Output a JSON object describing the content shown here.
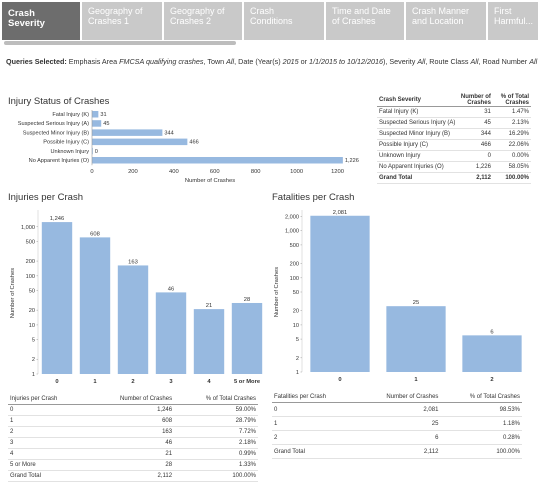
{
  "tabs": [
    {
      "label": "Crash Severity",
      "active": true
    },
    {
      "label": "Geography of Crashes 1",
      "active": false
    },
    {
      "label": "Geography of Crashes 2",
      "active": false
    },
    {
      "label": "Crash Conditions",
      "active": false
    },
    {
      "label": "Time and Date of Crashes",
      "active": false
    },
    {
      "label": "Crash Manner and Location",
      "active": false
    },
    {
      "label": "First Harmful...",
      "active": false
    }
  ],
  "query": {
    "label": "Queries Selected:",
    "p1": " Emphasis Area ",
    "p1i": "FMCSA qualifying crashes",
    "p2": ", Town ",
    "p2i": "All",
    "p3": ", Date (Year(s) ",
    "p3i": "2015",
    "p4": " or ",
    "p4i": "1/1/2015 to 10/12/2016",
    "p5": "), Severity ",
    "p5i": "All",
    "p6": ", Route Class ",
    "p6i": "All",
    "p7": ", Road Number ",
    "p7i": "All"
  },
  "injury_status": {
    "title": "Injury Status of Crashes",
    "table": {
      "headers": [
        "Crash Severity",
        "Number of Crashes",
        "% of Total Crashes"
      ],
      "rows": [
        [
          "Fatal Injury (K)",
          "31",
          "1.47%"
        ],
        [
          "Suspected Serious Injury (A)",
          "45",
          "2.13%"
        ],
        [
          "Suspected Minor Injury (B)",
          "344",
          "16.29%"
        ],
        [
          "Possible Injury (C)",
          "466",
          "22.06%"
        ],
        [
          "Unknown Injury",
          "0",
          "0.00%"
        ],
        [
          "No Apparent Injuries (O)",
          "1,226",
          "58.05%"
        ],
        [
          "Grand Total",
          "2,112",
          "100.00%"
        ]
      ]
    }
  },
  "injuries_per_crash": {
    "title": "Injuries per Crash",
    "table": {
      "headers": [
        "Injuries per Crash",
        "Number of Crashes",
        "% of Total Crashes"
      ],
      "rows": [
        [
          "0",
          "1,246",
          "59.00%"
        ],
        [
          "1",
          "608",
          "28.79%"
        ],
        [
          "2",
          "163",
          "7.72%"
        ],
        [
          "3",
          "46",
          "2.18%"
        ],
        [
          "4",
          "21",
          "0.99%"
        ],
        [
          "5 or More",
          "28",
          "1.33%"
        ],
        [
          "Grand Total",
          "2,112",
          "100.00%"
        ]
      ]
    }
  },
  "fatalities_per_crash": {
    "title": "Fatalities per Crash",
    "table": {
      "headers": [
        "Fatalities per Crash",
        "Number of Crashes",
        "% of Total Crashes"
      ],
      "rows": [
        [
          "0",
          "2,081",
          "98.53%"
        ],
        [
          "1",
          "25",
          "1.18%"
        ],
        [
          "2",
          "6",
          "0.28%"
        ],
        [
          "Grand Total",
          "2,112",
          "100.00%"
        ]
      ]
    }
  },
  "colors": {
    "bar": "#97b9e0",
    "tab_active": "#6d6d6d",
    "tab_inactive": "#c9c9c9"
  },
  "chart_data": [
    {
      "type": "bar",
      "orientation": "horizontal",
      "categories": [
        "Fatal Injury (K)",
        "Suspected Serious Injury (A)",
        "Suspected Minor Injury (B)",
        "Possible Injury (C)",
        "Unknown Injury",
        "No Apparent Injuries (O)"
      ],
      "values": [
        31,
        45,
        344,
        466,
        0,
        1226
      ],
      "data_labels": [
        "31",
        "45",
        "344",
        "466",
        "0",
        "1,226"
      ],
      "xlabel": "Number of Crashes",
      "xlim": [
        0,
        1300
      ],
      "xticks": [
        "0",
        "200",
        "400",
        "600",
        "800",
        "1000",
        "1200"
      ]
    },
    {
      "type": "bar",
      "scale": "log",
      "categories": [
        "0",
        "1",
        "2",
        "3",
        "4",
        "5 or More"
      ],
      "values": [
        1246,
        608,
        163,
        46,
        21,
        28
      ],
      "data_labels": [
        "1,246",
        "608",
        "163",
        "46",
        "21",
        "28"
      ],
      "ylabel": "Number of Crashes",
      "ylim": [
        1,
        2000
      ],
      "yticks": [
        {
          "v": 1,
          "l": "1"
        },
        {
          "v": 2,
          "l": "2"
        },
        {
          "v": 5,
          "l": "5"
        },
        {
          "v": 10,
          "l": "10"
        },
        {
          "v": 20,
          "l": "20"
        },
        {
          "v": 50,
          "l": "50"
        },
        {
          "v": 100,
          "l": "100"
        },
        {
          "v": 200,
          "l": "200"
        },
        {
          "v": 500,
          "l": "500"
        },
        {
          "v": 1000,
          "l": "1,000"
        }
      ]
    },
    {
      "type": "bar",
      "scale": "log",
      "categories": [
        "0",
        "1",
        "2"
      ],
      "values": [
        2081,
        25,
        6
      ],
      "data_labels": [
        "2,081",
        "25",
        "6"
      ],
      "ylabel": "Number of Crashes",
      "ylim": [
        1,
        2500
      ],
      "yticks": [
        {
          "v": 1,
          "l": "1"
        },
        {
          "v": 2,
          "l": "2"
        },
        {
          "v": 5,
          "l": "5"
        },
        {
          "v": 10,
          "l": "10"
        },
        {
          "v": 20,
          "l": "20"
        },
        {
          "v": 50,
          "l": "50"
        },
        {
          "v": 100,
          "l": "100"
        },
        {
          "v": 200,
          "l": "200"
        },
        {
          "v": 500,
          "l": "500"
        },
        {
          "v": 1000,
          "l": "1,000"
        },
        {
          "v": 2000,
          "l": "2,000"
        }
      ]
    }
  ]
}
